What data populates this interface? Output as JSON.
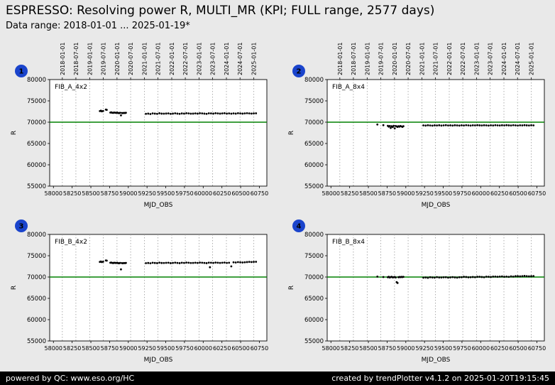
{
  "header": {
    "title": "ESPRESSO: Resolving power R, MULTI_MR (KPI; FULL range, 2577 days)",
    "subtitle": "Data range: 2018-01-01 ... 2025-01-19*"
  },
  "footer": {
    "left": "powered by QC: www.eso.org/HC",
    "right": "created by trendPlotter v4.1.2 on 2025-01-20T19:15:45"
  },
  "colors": {
    "badge": "#1a44cc",
    "reference_line": "#008000",
    "point": "#000000",
    "grid": "#999999",
    "plot_bg": "#ffffff",
    "page_bg": "#e9e9e9",
    "footer_bg": "#000000",
    "footer_fg": "#ffffff"
  },
  "axes": {
    "xlabel": "MJD_OBS",
    "ylabel": "R",
    "xlim": [
      57950,
      60850
    ],
    "ylim": [
      55000,
      80000
    ],
    "xticks": [
      58000,
      58250,
      58500,
      58750,
      59000,
      59250,
      59500,
      59750,
      60000,
      60250,
      60500,
      60750
    ],
    "yticks": [
      55000,
      60000,
      65000,
      70000,
      75000,
      80000
    ],
    "grid": "vertical-dotted-at-dates",
    "legend": "none",
    "reference_line": {
      "value": 70000,
      "color": "#008000"
    },
    "date_gridlines": [
      {
        "label": "2018-01-01",
        "mjd": 58119
      },
      {
        "label": "2018-07-01",
        "mjd": 58300
      },
      {
        "label": "2019-01-01",
        "mjd": 58484
      },
      {
        "label": "2019-07-01",
        "mjd": 58665
      },
      {
        "label": "2020-01-01",
        "mjd": 58849
      },
      {
        "label": "2020-07-01",
        "mjd": 59031
      },
      {
        "label": "2021-01-01",
        "mjd": 59215
      },
      {
        "label": "2021-07-01",
        "mjd": 59396
      },
      {
        "label": "2022-01-01",
        "mjd": 59580
      },
      {
        "label": "2022-07-01",
        "mjd": 59761
      },
      {
        "label": "2023-01-01",
        "mjd": 59945
      },
      {
        "label": "2023-07-01",
        "mjd": 60126
      },
      {
        "label": "2024-01-01",
        "mjd": 60310
      },
      {
        "label": "2024-07-01",
        "mjd": 60492
      },
      {
        "label": "2025-01-01",
        "mjd": 60676
      }
    ]
  },
  "chart_data": [
    {
      "id": 1,
      "badge": "1",
      "type": "scatter",
      "label": "FIB_A_4x2",
      "date_axis": true,
      "points": [
        [
          58620,
          72600
        ],
        [
          58634,
          72700
        ],
        [
          58646,
          72550
        ],
        [
          58664,
          72620
        ],
        [
          58700,
          72950
        ],
        [
          58712,
          72890
        ],
        [
          58760,
          72250
        ],
        [
          58772,
          72300
        ],
        [
          58785,
          72210
        ],
        [
          58798,
          72180
        ],
        [
          58810,
          72260
        ],
        [
          58825,
          72220
        ],
        [
          58838,
          72190
        ],
        [
          58852,
          72240
        ],
        [
          58865,
          72160
        ],
        [
          58878,
          72120
        ],
        [
          58890,
          72210
        ],
        [
          58902,
          71600
        ],
        [
          58915,
          72170
        ],
        [
          58928,
          72130
        ],
        [
          58942,
          72190
        ],
        [
          58955,
          72150
        ],
        [
          58968,
          72210
        ],
        [
          59235,
          71950
        ],
        [
          59265,
          72010
        ],
        [
          59295,
          71920
        ],
        [
          59325,
          72060
        ],
        [
          59355,
          72010
        ],
        [
          59385,
          71960
        ],
        [
          59415,
          72090
        ],
        [
          59445,
          72010
        ],
        [
          59475,
          71990
        ],
        [
          59505,
          72030
        ],
        [
          59535,
          72060
        ],
        [
          59565,
          71960
        ],
        [
          59595,
          72010
        ],
        [
          59625,
          72080
        ],
        [
          59655,
          72010
        ],
        [
          59685,
          71960
        ],
        [
          59715,
          72050
        ],
        [
          59745,
          72010
        ],
        [
          59775,
          72100
        ],
        [
          59805,
          72060
        ],
        [
          59835,
          71990
        ],
        [
          59865,
          72010
        ],
        [
          59895,
          72060
        ],
        [
          59925,
          72010
        ],
        [
          59955,
          72100
        ],
        [
          59985,
          72060
        ],
        [
          60015,
          72010
        ],
        [
          60045,
          71960
        ],
        [
          60075,
          72080
        ],
        [
          60105,
          72060
        ],
        [
          60135,
          72010
        ],
        [
          60165,
          72100
        ],
        [
          60195,
          72060
        ],
        [
          60225,
          72010
        ],
        [
          60255,
          72060
        ],
        [
          60285,
          72100
        ],
        [
          60315,
          72010
        ],
        [
          60345,
          72060
        ],
        [
          60375,
          71990
        ],
        [
          60405,
          72060
        ],
        [
          60435,
          72010
        ],
        [
          60465,
          72100
        ],
        [
          60495,
          72060
        ],
        [
          60525,
          72010
        ],
        [
          60555,
          72060
        ],
        [
          60585,
          72110
        ],
        [
          60615,
          72060
        ],
        [
          60645,
          72020
        ],
        [
          60675,
          72060
        ],
        [
          60705,
          72080
        ]
      ]
    },
    {
      "id": 2,
      "badge": "2",
      "type": "scatter",
      "label": "FIB_A_8x4",
      "date_axis": true,
      "points": [
        [
          58620,
          69450
        ],
        [
          58700,
          69300
        ],
        [
          58760,
          69150
        ],
        [
          58772,
          68950
        ],
        [
          58785,
          69100
        ],
        [
          58798,
          68650
        ],
        [
          58810,
          69050
        ],
        [
          58825,
          68850
        ],
        [
          58838,
          69150
        ],
        [
          58852,
          68550
        ],
        [
          58865,
          69100
        ],
        [
          58878,
          69000
        ],
        [
          58890,
          68900
        ],
        [
          58902,
          69050
        ],
        [
          58915,
          68950
        ],
        [
          58928,
          69100
        ],
        [
          58942,
          69000
        ],
        [
          58955,
          68900
        ],
        [
          58968,
          69060
        ],
        [
          59235,
          69250
        ],
        [
          59265,
          69200
        ],
        [
          59295,
          69280
        ],
        [
          59325,
          69220
        ],
        [
          59355,
          69180
        ],
        [
          59385,
          69260
        ],
        [
          59415,
          69230
        ],
        [
          59445,
          69280
        ],
        [
          59475,
          69200
        ],
        [
          59505,
          69250
        ],
        [
          59535,
          69300
        ],
        [
          59565,
          69220
        ],
        [
          59595,
          69260
        ],
        [
          59625,
          69210
        ],
        [
          59655,
          69280
        ],
        [
          59685,
          69240
        ],
        [
          59715,
          69200
        ],
        [
          59745,
          69270
        ],
        [
          59775,
          69230
        ],
        [
          59805,
          69290
        ],
        [
          59835,
          69250
        ],
        [
          59865,
          69210
        ],
        [
          59895,
          69270
        ],
        [
          59925,
          69240
        ],
        [
          59955,
          69300
        ],
        [
          59985,
          69260
        ],
        [
          60015,
          69220
        ],
        [
          60045,
          69280
        ],
        [
          60075,
          69250
        ],
        [
          60105,
          69210
        ],
        [
          60135,
          69270
        ],
        [
          60165,
          69230
        ],
        [
          60195,
          69290
        ],
        [
          60225,
          69250
        ],
        [
          60255,
          69220
        ],
        [
          60285,
          69280
        ],
        [
          60315,
          69240
        ],
        [
          60345,
          69300
        ],
        [
          60375,
          69260
        ],
        [
          60405,
          69230
        ],
        [
          60435,
          69290
        ],
        [
          60465,
          69250
        ],
        [
          60495,
          69210
        ],
        [
          60525,
          69270
        ],
        [
          60555,
          69240
        ],
        [
          60585,
          69300
        ],
        [
          60615,
          69260
        ],
        [
          60645,
          69220
        ],
        [
          60675,
          69280
        ],
        [
          60705,
          69250
        ]
      ]
    },
    {
      "id": 3,
      "badge": "3",
      "type": "scatter",
      "label": "FIB_B_4x2",
      "date_axis": false,
      "points": [
        [
          58620,
          73550
        ],
        [
          58634,
          73650
        ],
        [
          58646,
          73500
        ],
        [
          58664,
          73600
        ],
        [
          58700,
          73900
        ],
        [
          58712,
          73850
        ],
        [
          58760,
          73350
        ],
        [
          58772,
          73400
        ],
        [
          58785,
          73310
        ],
        [
          58798,
          73280
        ],
        [
          58810,
          73360
        ],
        [
          58825,
          73320
        ],
        [
          58838,
          73290
        ],
        [
          58852,
          73340
        ],
        [
          58865,
          73260
        ],
        [
          58878,
          73220
        ],
        [
          58890,
          73310
        ],
        [
          58902,
          71800
        ],
        [
          58915,
          73270
        ],
        [
          58928,
          73230
        ],
        [
          58942,
          73290
        ],
        [
          58955,
          73250
        ],
        [
          58968,
          73310
        ],
        [
          59235,
          73250
        ],
        [
          59265,
          73300
        ],
        [
          59295,
          73220
        ],
        [
          59325,
          73350
        ],
        [
          59355,
          73300
        ],
        [
          59385,
          73260
        ],
        [
          59415,
          73380
        ],
        [
          59445,
          73300
        ],
        [
          59475,
          73290
        ],
        [
          59505,
          73330
        ],
        [
          59535,
          73360
        ],
        [
          59565,
          73260
        ],
        [
          59595,
          73310
        ],
        [
          59625,
          73380
        ],
        [
          59655,
          73310
        ],
        [
          59685,
          73260
        ],
        [
          59715,
          73350
        ],
        [
          59745,
          73310
        ],
        [
          59775,
          73400
        ],
        [
          59805,
          73360
        ],
        [
          59835,
          73290
        ],
        [
          59865,
          73310
        ],
        [
          59895,
          73360
        ],
        [
          59925,
          73310
        ],
        [
          59955,
          73400
        ],
        [
          59985,
          73360
        ],
        [
          60015,
          73310
        ],
        [
          60045,
          73260
        ],
        [
          60075,
          73380
        ],
        [
          60090,
          72300
        ],
        [
          60105,
          73360
        ],
        [
          60135,
          73310
        ],
        [
          60165,
          73400
        ],
        [
          60195,
          73360
        ],
        [
          60225,
          73310
        ],
        [
          60255,
          73360
        ],
        [
          60285,
          73400
        ],
        [
          60315,
          73310
        ],
        [
          60345,
          73360
        ],
        [
          60375,
          72500
        ],
        [
          60405,
          73460
        ],
        [
          60435,
          73410
        ],
        [
          60465,
          73500
        ],
        [
          60495,
          73460
        ],
        [
          60525,
          73410
        ],
        [
          60555,
          73460
        ],
        [
          60585,
          73510
        ],
        [
          60615,
          73560
        ],
        [
          60645,
          73520
        ],
        [
          60675,
          73560
        ],
        [
          60705,
          73580
        ]
      ]
    },
    {
      "id": 4,
      "badge": "4",
      "type": "scatter",
      "label": "FIB_B_8x4",
      "date_axis": false,
      "points": [
        [
          58620,
          70100
        ],
        [
          58700,
          70000
        ],
        [
          58760,
          69950
        ],
        [
          58772,
          70050
        ],
        [
          58785,
          69900
        ],
        [
          58798,
          69980
        ],
        [
          58810,
          70060
        ],
        [
          58825,
          69920
        ],
        [
          58838,
          69960
        ],
        [
          58852,
          70020
        ],
        [
          58865,
          69890
        ],
        [
          58878,
          68800
        ],
        [
          58890,
          68600
        ],
        [
          58902,
          69950
        ],
        [
          58915,
          70010
        ],
        [
          58928,
          69970
        ],
        [
          58942,
          70030
        ],
        [
          58955,
          69990
        ],
        [
          58968,
          70040
        ],
        [
          59235,
          69850
        ],
        [
          59265,
          69900
        ],
        [
          59295,
          69820
        ],
        [
          59325,
          69950
        ],
        [
          59355,
          69900
        ],
        [
          59385,
          69860
        ],
        [
          59415,
          69980
        ],
        [
          59445,
          69900
        ],
        [
          59475,
          69890
        ],
        [
          59505,
          69930
        ],
        [
          59535,
          69960
        ],
        [
          59565,
          69860
        ],
        [
          59595,
          69910
        ],
        [
          59625,
          69980
        ],
        [
          59655,
          69910
        ],
        [
          59685,
          69860
        ],
        [
          59715,
          69950
        ],
        [
          59745,
          69960
        ],
        [
          59775,
          70050
        ],
        [
          59805,
          70010
        ],
        [
          59835,
          69940
        ],
        [
          59865,
          69960
        ],
        [
          59895,
          70010
        ],
        [
          59925,
          69960
        ],
        [
          59955,
          70050
        ],
        [
          59985,
          70060
        ],
        [
          60015,
          70010
        ],
        [
          60045,
          69960
        ],
        [
          60075,
          70080
        ],
        [
          60105,
          70060
        ],
        [
          60135,
          70010
        ],
        [
          60165,
          70100
        ],
        [
          60195,
          70110
        ],
        [
          60225,
          70060
        ],
        [
          60255,
          70110
        ],
        [
          60285,
          70150
        ],
        [
          60315,
          70060
        ],
        [
          60345,
          70110
        ],
        [
          60375,
          70040
        ],
        [
          60405,
          70160
        ],
        [
          60435,
          70110
        ],
        [
          60465,
          70200
        ],
        [
          60495,
          70210
        ],
        [
          60525,
          70160
        ],
        [
          60555,
          70210
        ],
        [
          60585,
          70260
        ],
        [
          60615,
          70210
        ],
        [
          60645,
          70170
        ],
        [
          60675,
          70210
        ],
        [
          60705,
          70230
        ]
      ]
    }
  ]
}
